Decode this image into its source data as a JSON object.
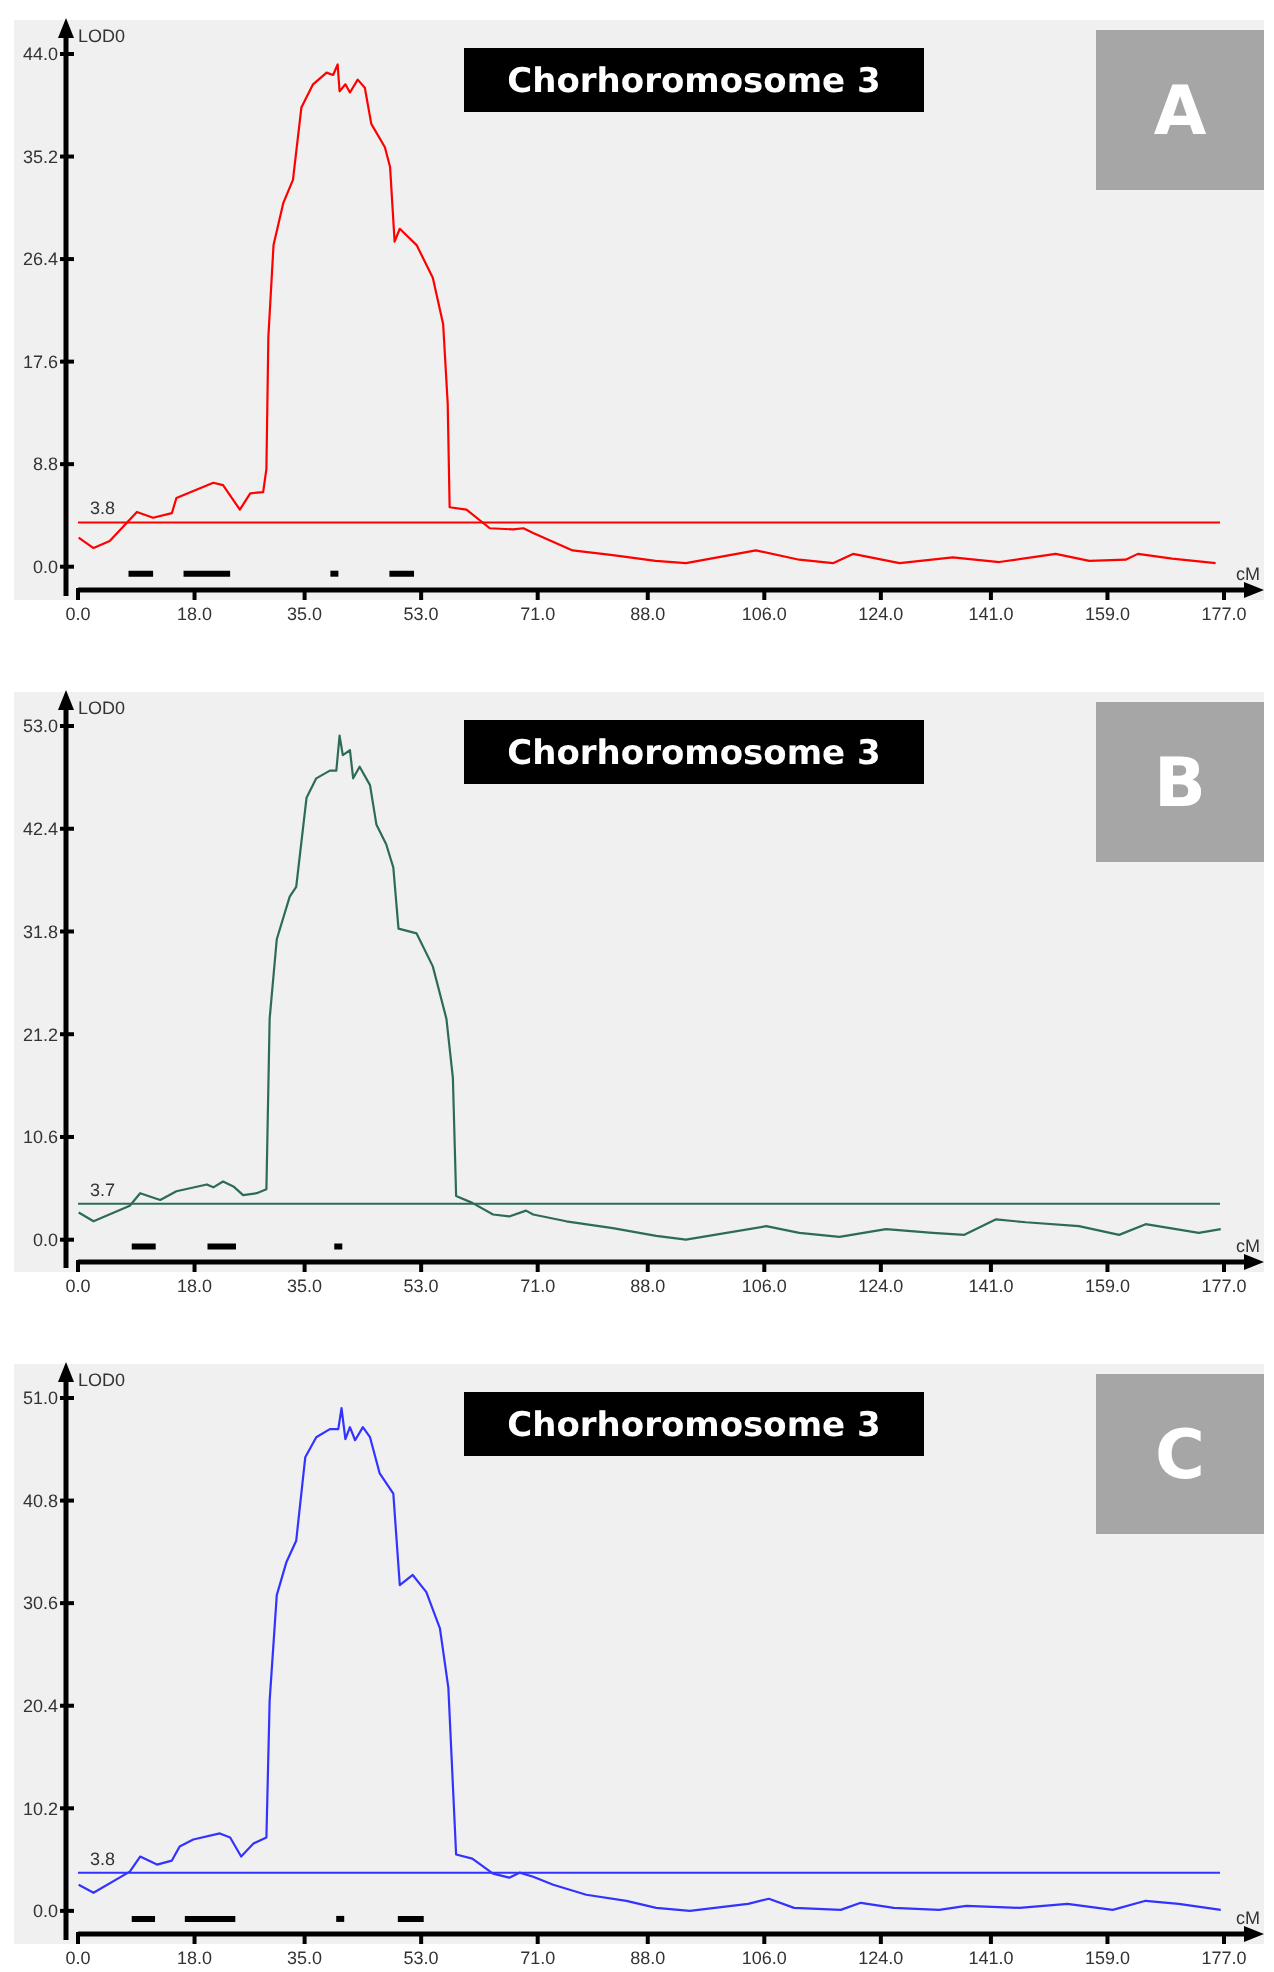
{
  "chart_data": [
    {
      "type": "line",
      "title": "Chorhoromosome 3",
      "annotations": [
        "A"
      ],
      "xlabel": "cM",
      "ylabel": "LOD0",
      "xlim": [
        0,
        177
      ],
      "ylim": [
        -2,
        44
      ],
      "xticks": [
        {
          "value": 0,
          "label": "0.0"
        },
        {
          "value": 18,
          "label": "18.0"
        },
        {
          "value": 35,
          "label": "35.0"
        },
        {
          "value": 53,
          "label": "53.0"
        },
        {
          "value": 71,
          "label": "71.0"
        },
        {
          "value": 88,
          "label": "88.0"
        },
        {
          "value": 106,
          "label": "106.0"
        },
        {
          "value": 124,
          "label": "124.0"
        },
        {
          "value": 141,
          "label": "141.0"
        },
        {
          "value": 159,
          "label": "159.0"
        },
        {
          "value": 177,
          "label": "177.0"
        }
      ],
      "yticks": [
        {
          "value": 0,
          "label": "0.0"
        },
        {
          "value": 8.8,
          "label": "8.8"
        },
        {
          "value": 17.6,
          "label": "17.6"
        },
        {
          "value": 26.4,
          "label": "26.4"
        },
        {
          "value": 35.2,
          "label": "35.2"
        },
        {
          "value": 44,
          "label": "44.0"
        }
      ],
      "ref_lines": [
        {
          "axis": "y",
          "value": 3.8,
          "label": "3.8",
          "color": "#ff0000"
        }
      ],
      "series": [
        {
          "color": "#ff0000",
          "x": [
            0.1,
            2.4,
            4.9,
            9.1,
            11.6,
            14.5,
            15.2,
            20.9,
            22.4,
            25.0,
            26.6,
            28.6,
            29.1,
            29.4,
            30.2,
            31.7,
            33.2,
            34.5,
            36.3,
            38.4,
            39.4,
            40.1,
            40.4,
            41.3,
            42.0,
            43.2,
            44.3,
            45.3,
            47.4,
            48.2,
            48.9,
            49.7,
            52.3,
            54.8,
            56.4,
            57.1,
            57.4,
            60.0,
            63.6,
            67.2,
            68.8,
            70.3,
            76.4,
            82.6,
            89.2,
            93.9,
            104.7,
            111.4,
            116.6,
            119.7,
            126.9,
            135.1,
            142.3,
            151.0,
            156.2,
            161.8,
            163.7,
            169.0,
            175.7
          ],
          "values": [
            2.5,
            1.6,
            2.2,
            4.7,
            4.2,
            4.6,
            5.9,
            7.2,
            7.0,
            4.9,
            6.3,
            6.4,
            8.4,
            19.7,
            27.6,
            31.2,
            33.2,
            39.4,
            41.4,
            42.4,
            42.2,
            43.1,
            40.8,
            41.4,
            40.7,
            41.8,
            41.1,
            38.0,
            36.0,
            34.3,
            27.9,
            29.0,
            27.6,
            24.8,
            20.8,
            14.0,
            5.1,
            4.9,
            3.3,
            3.2,
            3.3,
            2.9,
            1.4,
            1.0,
            0.5,
            0.3,
            1.4,
            0.6,
            0.3,
            1.1,
            0.3,
            0.8,
            0.4,
            1.1,
            0.5,
            0.6,
            1.1,
            0.7,
            0.3
          ]
        },
        {
          "color": "#000000",
          "x": [
            7.8,
            11.6,
            null,
            16.3,
            23.5,
            null,
            48.1,
            51.9
          ],
          "values": [
            -0.6,
            -0.6,
            null,
            -0.6,
            -0.6,
            null,
            -0.6,
            -0.6
          ]
        },
        {
          "type": "scatter",
          "marker": "square",
          "color": "#000000",
          "x": [
            39.6
          ],
          "values": [
            -0.6
          ]
        }
      ]
    },
    {
      "type": "line",
      "title": "Chorhoromosome 3",
      "annotations": [
        "B"
      ],
      "xlabel": "cM",
      "ylabel": "LOD0",
      "xlim": [
        0,
        177
      ],
      "ylim": [
        -2.3,
        53
      ],
      "xticks": [
        {
          "value": 0,
          "label": "0.0"
        },
        {
          "value": 18,
          "label": "18.0"
        },
        {
          "value": 35,
          "label": "35.0"
        },
        {
          "value": 53,
          "label": "53.0"
        },
        {
          "value": 71,
          "label": "71.0"
        },
        {
          "value": 88,
          "label": "88.0"
        },
        {
          "value": 106,
          "label": "106.0"
        },
        {
          "value": 124,
          "label": "124.0"
        },
        {
          "value": 141,
          "label": "141.0"
        },
        {
          "value": 159,
          "label": "159.0"
        },
        {
          "value": 177,
          "label": "177.0"
        }
      ],
      "yticks": [
        {
          "value": 0,
          "label": "0.0"
        },
        {
          "value": 10.6,
          "label": "10.6"
        },
        {
          "value": 21.2,
          "label": "21.2"
        },
        {
          "value": 31.8,
          "label": "31.8"
        },
        {
          "value": 42.4,
          "label": "42.4"
        },
        {
          "value": 53,
          "label": "53.0"
        }
      ],
      "ref_lines": [
        {
          "axis": "y",
          "value": 3.7,
          "label": "3.7",
          "color": "#2e6b55"
        }
      ],
      "series": [
        {
          "color": "#2e6b55",
          "x": [
            0.1,
            2.4,
            8.0,
            9.6,
            12.7,
            15.2,
            19.9,
            20.9,
            22.4,
            24.0,
            25.5,
            27.6,
            29.1,
            29.6,
            30.7,
            32.7,
            33.7,
            35.3,
            36.8,
            38.9,
            39.9,
            40.4,
            40.9,
            42.0,
            42.5,
            43.5,
            45.1,
            46.1,
            47.6,
            48.7,
            49.5,
            52.3,
            54.8,
            56.9,
            57.9,
            58.4,
            60.9,
            64.1,
            66.6,
            69.2,
            70.3,
            75.4,
            82.6,
            89.3,
            93.9,
            106.3,
            111.4,
            117.6,
            124.8,
            132.0,
            136.9,
            141.8,
            146.4,
            154.6,
            160.8,
            164.9,
            173.1,
            176.5
          ],
          "values": [
            2.8,
            1.9,
            3.5,
            4.8,
            4.1,
            5.0,
            5.7,
            5.4,
            6.0,
            5.5,
            4.6,
            4.8,
            5.2,
            22.8,
            31.0,
            35.4,
            36.4,
            45.6,
            47.6,
            48.4,
            48.4,
            52.0,
            50.0,
            50.5,
            47.6,
            48.8,
            46.9,
            42.8,
            40.8,
            38.4,
            32.1,
            31.6,
            28.2,
            22.8,
            16.7,
            4.5,
            3.8,
            2.6,
            2.4,
            3.0,
            2.6,
            1.9,
            1.2,
            0.4,
            0.0,
            1.4,
            0.7,
            0.3,
            1.1,
            0.7,
            0.5,
            2.1,
            1.8,
            1.4,
            0.5,
            1.6,
            0.7,
            1.1
          ]
        },
        {
          "color": "#000000",
          "x": [
            8.3,
            12.0,
            null,
            20.0,
            24.4
          ],
          "values": [
            -0.7,
            -0.7,
            null,
            -0.7,
            -0.7
          ]
        },
        {
          "type": "scatter",
          "marker": "square",
          "color": "#000000",
          "x": [
            40.2
          ],
          "values": [
            -0.7
          ]
        }
      ]
    },
    {
      "type": "line",
      "title": "Chorhoromosome 3",
      "annotations": [
        "C"
      ],
      "xlabel": "cM",
      "ylabel": "LOD0",
      "xlim": [
        0,
        177
      ],
      "ylim": [
        -2.3,
        51
      ],
      "xticks": [
        {
          "value": 0,
          "label": "0.0"
        },
        {
          "value": 18,
          "label": "18.0"
        },
        {
          "value": 35,
          "label": "35.0"
        },
        {
          "value": 53,
          "label": "53.0"
        },
        {
          "value": 71,
          "label": "71.0"
        },
        {
          "value": 88,
          "label": "88.0"
        },
        {
          "value": 106,
          "label": "106.0"
        },
        {
          "value": 124,
          "label": "124.0"
        },
        {
          "value": 141,
          "label": "141.0"
        },
        {
          "value": 159,
          "label": "159.0"
        },
        {
          "value": 177,
          "label": "177.0"
        }
      ],
      "yticks": [
        {
          "value": 0,
          "label": "0.0"
        },
        {
          "value": 10.2,
          "label": "10.2"
        },
        {
          "value": 20.4,
          "label": "20.4"
        },
        {
          "value": 30.6,
          "label": "30.6"
        },
        {
          "value": 40.8,
          "label": "40.8"
        },
        {
          "value": 51,
          "label": "51.0"
        }
      ],
      "ref_lines": [
        {
          "axis": "y",
          "value": 3.8,
          "label": "3.8",
          "color": "#3333ff"
        }
      ],
      "series": [
        {
          "color": "#3333ff",
          "x": [
            0.1,
            2.4,
            8.0,
            9.6,
            12.2,
            14.5,
            15.7,
            17.8,
            21.9,
            23.5,
            25.2,
            27.1,
            29.1,
            29.6,
            30.7,
            32.2,
            33.7,
            35.1,
            36.8,
            38.9,
            40.2,
            40.7,
            41.3,
            42.0,
            42.8,
            44.0,
            45.1,
            46.6,
            48.7,
            49.7,
            51.7,
            53.8,
            55.9,
            57.2,
            58.4,
            60.9,
            64.1,
            66.6,
            68.2,
            70.3,
            73.4,
            78.5,
            84.7,
            89.3,
            94.5,
            103.5,
            106.7,
            110.6,
            117.8,
            120.9,
            126.0,
            133.0,
            137.2,
            145.4,
            152.8,
            159.8,
            164.9,
            170.0,
            176.5
          ],
          "values": [
            2.6,
            1.8,
            3.9,
            5.4,
            4.6,
            5.0,
            6.4,
            7.1,
            7.7,
            7.3,
            5.4,
            6.7,
            7.3,
            20.9,
            31.4,
            34.7,
            36.8,
            45.1,
            47.1,
            47.9,
            47.9,
            50.0,
            46.9,
            48.1,
            46.8,
            48.1,
            47.1,
            43.5,
            41.5,
            32.4,
            33.4,
            31.7,
            28.1,
            22.2,
            5.6,
            5.2,
            3.7,
            3.3,
            3.8,
            3.4,
            2.6,
            1.6,
            1.0,
            0.3,
            0.0,
            0.7,
            1.2,
            0.3,
            0.1,
            0.8,
            0.3,
            0.1,
            0.5,
            0.3,
            0.7,
            0.1,
            1.0,
            0.7,
            0.1
          ]
        },
        {
          "color": "#000000",
          "x": [
            8.3,
            11.9,
            null,
            16.5,
            24.3,
            null,
            49.4,
            53.4
          ],
          "values": [
            -0.8,
            -0.8,
            null,
            -0.8,
            -0.8,
            null,
            -0.8,
            -0.8
          ]
        },
        {
          "type": "scatter",
          "marker": "square",
          "color": "#000000",
          "x": [
            40.5
          ],
          "values": [
            -0.8
          ]
        }
      ]
    }
  ]
}
